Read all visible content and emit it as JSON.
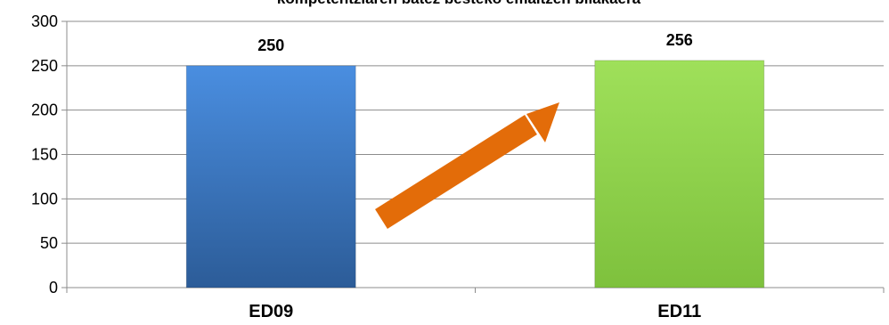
{
  "chart_data": {
    "type": "bar",
    "title": "kompetentziaren batez besteko emaitzen bilakaera",
    "categories": [
      "ED09",
      "ED11"
    ],
    "values": [
      250,
      256
    ],
    "data_labels": [
      "250",
      "256"
    ],
    "ylim": [
      0,
      300
    ],
    "yticks": [
      0,
      50,
      100,
      150,
      200,
      250,
      300
    ],
    "grid": true,
    "legend": "none",
    "bar_colors": [
      "#3f7fd0",
      "#8fd64a"
    ],
    "arrow_color": "#e36c09"
  }
}
